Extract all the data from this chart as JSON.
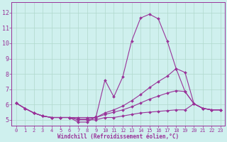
{
  "xlabel": "Windchill (Refroidissement éolien,°C)",
  "bg_color": "#cff0ee",
  "grid_color": "#b0d8cc",
  "line_color": "#993399",
  "x_ticks": [
    0,
    1,
    2,
    3,
    4,
    5,
    6,
    7,
    8,
    9,
    10,
    11,
    12,
    13,
    14,
    15,
    16,
    17,
    18,
    19,
    20,
    21,
    22,
    23
  ],
  "y_ticks": [
    5,
    6,
    7,
    8,
    9,
    10,
    11,
    12
  ],
  "xlim": [
    -0.5,
    23.5
  ],
  "ylim": [
    4.6,
    12.7
  ],
  "lines": [
    {
      "x": [
        0,
        1,
        2,
        3,
        4,
        5,
        6,
        7,
        8,
        9,
        10,
        11,
        12,
        13,
        14,
        15,
        16,
        17,
        18,
        19,
        20,
        21,
        22,
        23
      ],
      "y": [
        6.1,
        5.75,
        5.45,
        5.25,
        5.15,
        5.15,
        5.15,
        4.85,
        4.85,
        5.2,
        7.6,
        6.5,
        7.8,
        10.15,
        11.65,
        11.9,
        11.6,
        10.15,
        8.35,
        6.85,
        6.05,
        5.75,
        5.65,
        5.65
      ]
    },
    {
      "x": [
        0,
        1,
        2,
        3,
        4,
        5,
        6,
        7,
        8,
        9,
        10,
        11,
        12,
        13,
        14,
        15,
        16,
        17,
        18,
        19,
        20,
        21,
        22,
        23
      ],
      "y": [
        6.1,
        5.75,
        5.45,
        5.25,
        5.15,
        5.15,
        5.15,
        5.15,
        5.15,
        5.15,
        5.45,
        5.65,
        5.9,
        6.25,
        6.65,
        7.1,
        7.5,
        7.85,
        8.35,
        8.1,
        6.05,
        5.75,
        5.65,
        5.65
      ]
    },
    {
      "x": [
        0,
        1,
        2,
        3,
        4,
        5,
        6,
        7,
        8,
        9,
        10,
        11,
        12,
        13,
        14,
        15,
        16,
        17,
        18,
        19,
        20,
        21,
        22,
        23
      ],
      "y": [
        6.1,
        5.75,
        5.45,
        5.25,
        5.15,
        5.15,
        5.15,
        5.05,
        5.05,
        5.15,
        5.35,
        5.5,
        5.65,
        5.85,
        6.1,
        6.35,
        6.55,
        6.75,
        6.9,
        6.85,
        6.05,
        5.75,
        5.65,
        5.65
      ]
    },
    {
      "x": [
        0,
        1,
        2,
        3,
        4,
        5,
        6,
        7,
        8,
        9,
        10,
        11,
        12,
        13,
        14,
        15,
        16,
        17,
        18,
        19,
        20,
        21,
        22,
        23
      ],
      "y": [
        6.1,
        5.75,
        5.45,
        5.25,
        5.15,
        5.15,
        5.15,
        5.0,
        5.0,
        5.0,
        5.15,
        5.15,
        5.25,
        5.35,
        5.45,
        5.5,
        5.55,
        5.6,
        5.65,
        5.65,
        6.05,
        5.75,
        5.65,
        5.65
      ]
    }
  ]
}
